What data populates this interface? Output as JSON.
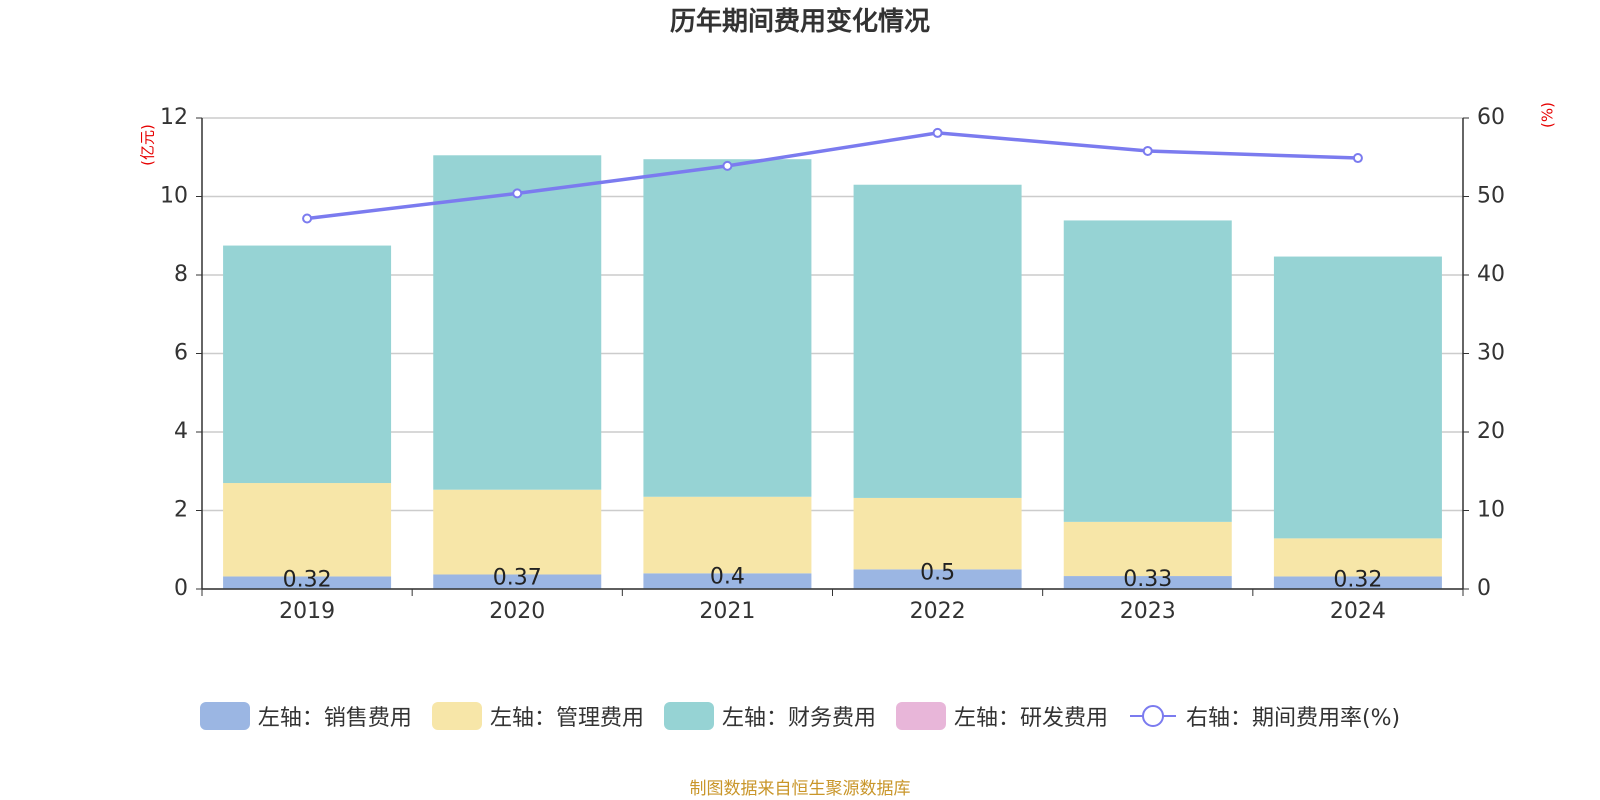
{
  "chart_data": {
    "type": "bar",
    "title": "历年期间费用变化情况",
    "categories": [
      "2019",
      "2020",
      "2021",
      "2022",
      "2023",
      "2024"
    ],
    "y_left_label": "(亿元)",
    "y_right_label": "(%)",
    "y_left_ticks": [
      "0",
      "2",
      "4",
      "6",
      "8",
      "10",
      "12"
    ],
    "y_right_ticks": [
      "0",
      "10",
      "20",
      "30",
      "40",
      "50",
      "60"
    ],
    "ylim_left": [
      0,
      12
    ],
    "ylim_right": [
      0,
      60
    ],
    "grid": true,
    "legend_position": "bottom",
    "stacked": true,
    "series": [
      {
        "name": "左轴：销售费用",
        "type": "bar",
        "axis": "left",
        "color": "#9bb6e3",
        "values": [
          0.32,
          0.37,
          0.4,
          0.5,
          0.33,
          0.32
        ],
        "labels": [
          "0.32",
          "0.37",
          "0.4",
          "0.5",
          "0.33",
          "0.32"
        ]
      },
      {
        "name": "左轴：管理费用",
        "type": "bar",
        "axis": "left",
        "color": "#f7e6a8",
        "values": [
          2.38,
          2.16,
          1.95,
          1.82,
          1.38,
          0.97
        ]
      },
      {
        "name": "左轴：财务费用",
        "type": "bar",
        "axis": "left",
        "color": "#96d3d4",
        "values": [
          6.05,
          8.52,
          8.6,
          7.98,
          7.68,
          7.18
        ]
      },
      {
        "name": "左轴：研发费用",
        "type": "bar",
        "axis": "left",
        "color": "#e8b6d9",
        "values": [
          0,
          0,
          0,
          0,
          0,
          0
        ]
      },
      {
        "name": "右轴：期间费用率(%)",
        "type": "line",
        "axis": "right",
        "color": "#7b7bef",
        "values": [
          47.2,
          50.4,
          53.9,
          58.1,
          55.8,
          54.9
        ]
      }
    ]
  },
  "source_note": "制图数据来自恒生聚源数据库"
}
